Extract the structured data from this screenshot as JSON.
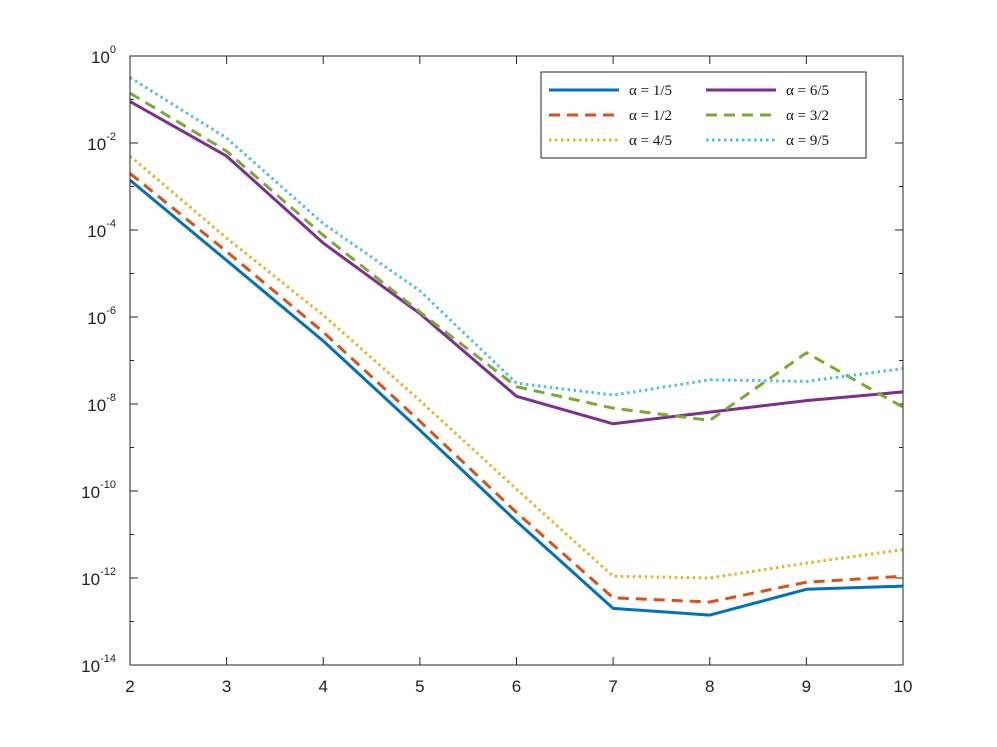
{
  "chart_data": {
    "type": "line",
    "title": "",
    "xlabel": "",
    "ylabel": "",
    "x": [
      2,
      3,
      4,
      5,
      6,
      7,
      8,
      9,
      10
    ],
    "xlim": [
      2,
      10
    ],
    "xticks": [
      "2",
      "3",
      "4",
      "5",
      "6",
      "7",
      "8",
      "9",
      "10"
    ],
    "ylim": [
      1e-14,
      1
    ],
    "yscale": "log",
    "yticks": [
      {
        "base": "10",
        "exp": "0",
        "value": 1
      },
      {
        "base": "10",
        "exp": "-2",
        "value": 0.01
      },
      {
        "base": "10",
        "exp": "-4",
        "value": 0.0001
      },
      {
        "base": "10",
        "exp": "-6",
        "value": 1e-06
      },
      {
        "base": "10",
        "exp": "-8",
        "value": 1e-08
      },
      {
        "base": "10",
        "exp": "-10",
        "value": 1e-10
      },
      {
        "base": "10",
        "exp": "-12",
        "value": 1e-12
      },
      {
        "base": "10",
        "exp": "-14",
        "value": 1e-14
      }
    ],
    "grid": false,
    "legend_position": "top-right",
    "series": [
      {
        "name": "α = 1/5",
        "color": "#0072BD",
        "style": "solid",
        "values": [
          0.0014,
          2e-05,
          2.8e-07,
          2.5e-09,
          2e-11,
          2e-13,
          1.4e-13,
          5.5e-13,
          6.5e-13
        ]
      },
      {
        "name": "α = 1/2",
        "color": "#D95319",
        "style": "dashed",
        "values": [
          0.002,
          3.2e-05,
          4.5e-07,
          4e-09,
          3.2e-11,
          3.5e-13,
          2.8e-13,
          8e-13,
          1.1e-12
        ]
      },
      {
        "name": "α = 4/5",
        "color": "#EDB120",
        "style": "dotted",
        "values": [
          0.005,
          6.5e-05,
          1.1e-06,
          1.2e-08,
          1.1e-10,
          1.1e-12,
          1e-12,
          2.2e-12,
          4.5e-12
        ]
      },
      {
        "name": "α = 6/5",
        "color": "#7E2F8E",
        "style": "solid",
        "values": [
          0.09,
          0.005,
          5e-05,
          1.2e-06,
          1.5e-08,
          3.5e-09,
          6.5e-09,
          1.2e-08,
          1.9e-08
        ]
      },
      {
        "name": "α = 3/2",
        "color": "#77AC30",
        "style": "dashed",
        "values": [
          0.14,
          0.0065,
          7.5e-05,
          1.3e-06,
          2.5e-08,
          8e-09,
          4.2e-09,
          1.5e-07,
          8.5e-09
        ]
      },
      {
        "name": "α = 9/5",
        "color": "#4DBEEE",
        "style": "dotted",
        "values": [
          0.32,
          0.013,
          0.00014,
          4e-06,
          3e-08,
          1.6e-08,
          3.6e-08,
          3.3e-08,
          6.5e-08
        ]
      }
    ]
  }
}
